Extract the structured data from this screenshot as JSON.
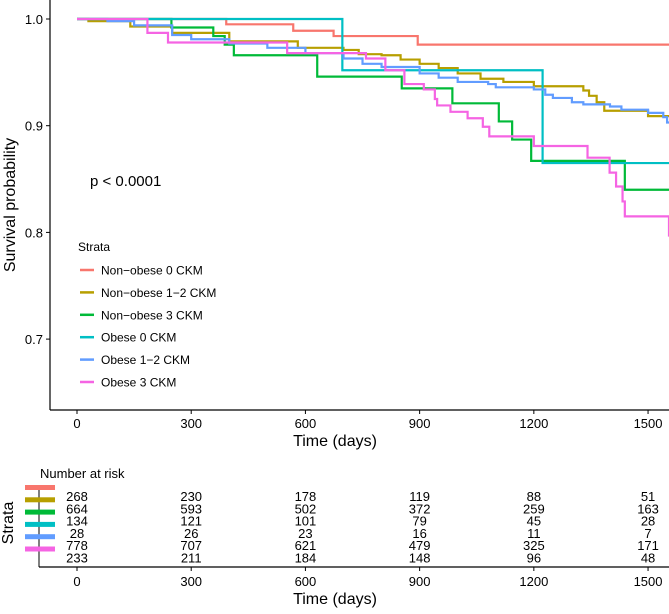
{
  "chart_data": {
    "type": "line",
    "subtype": "kaplan-meier",
    "xlabel": "Time (days)",
    "ylabel": "Survival probability",
    "xlim": [
      -70,
      1555
    ],
    "ylim": [
      0.633,
      1.018
    ],
    "xticks": [
      0,
      300,
      600,
      900,
      1200,
      1500
    ],
    "yticks": [
      0.7,
      0.8,
      0.9,
      1.0
    ],
    "ytick_labels": [
      "0.7",
      "0.8",
      "0.9",
      "1.0"
    ],
    "grid": false,
    "annotation": "p < 0.0001",
    "legend": {
      "title": "Strata",
      "placement": "center-left"
    },
    "series": [
      {
        "name": "Non−obese 0 CKM",
        "color": "#F8766D",
        "steps": [
          [
            0,
            1.0
          ],
          [
            392,
            0.995
          ],
          [
            568,
            0.989
          ],
          [
            674,
            0.984
          ],
          [
            895,
            0.976
          ],
          [
            1560,
            0.976
          ]
        ]
      },
      {
        "name": "Non−obese 1−2 CKM",
        "color": "#B79F00",
        "steps": [
          [
            0,
            1.0
          ],
          [
            30,
            0.998
          ],
          [
            140,
            0.993
          ],
          [
            250,
            0.987
          ],
          [
            400,
            0.979
          ],
          [
            580,
            0.973
          ],
          [
            700,
            0.971
          ],
          [
            740,
            0.967
          ],
          [
            800,
            0.966
          ],
          [
            850,
            0.962
          ],
          [
            900,
            0.958
          ],
          [
            950,
            0.954
          ],
          [
            1000,
            0.949
          ],
          [
            1060,
            0.944
          ],
          [
            1120,
            0.941
          ],
          [
            1200,
            0.937
          ],
          [
            1330,
            0.933
          ],
          [
            1345,
            0.928
          ],
          [
            1365,
            0.922
          ],
          [
            1385,
            0.914
          ],
          [
            1500,
            0.909
          ],
          [
            1560,
            0.908
          ]
        ]
      },
      {
        "name": "Non−obese 3 CKM",
        "color": "#00BA38",
        "steps": [
          [
            0,
            1.0
          ],
          [
            248,
            0.992
          ],
          [
            358,
            0.984
          ],
          [
            388,
            0.976
          ],
          [
            412,
            0.966
          ],
          [
            631,
            0.946
          ],
          [
            853,
            0.935
          ],
          [
            986,
            0.921
          ],
          [
            1108,
            0.904
          ],
          [
            1143,
            0.887
          ],
          [
            1193,
            0.867
          ],
          [
            1439,
            0.84
          ],
          [
            1560,
            0.84
          ]
        ]
      },
      {
        "name": "Obese 0 CKM",
        "color": "#00BFC4",
        "steps": [
          [
            0,
            1.0
          ],
          [
            697,
            0.952
          ],
          [
            1223,
            0.865
          ],
          [
            1560,
            0.865
          ]
        ]
      },
      {
        "name": "Obese 1−2 CKM",
        "color": "#619CFF",
        "steps": [
          [
            0,
            1.0
          ],
          [
            80,
            0.998
          ],
          [
            150,
            0.994
          ],
          [
            250,
            0.985
          ],
          [
            300,
            0.981
          ],
          [
            400,
            0.977
          ],
          [
            500,
            0.973
          ],
          [
            600,
            0.968
          ],
          [
            700,
            0.963
          ],
          [
            750,
            0.958
          ],
          [
            800,
            0.955
          ],
          [
            900,
            0.949
          ],
          [
            950,
            0.945
          ],
          [
            1000,
            0.941
          ],
          [
            1080,
            0.939
          ],
          [
            1100,
            0.936
          ],
          [
            1200,
            0.934
          ],
          [
            1230,
            0.929
          ],
          [
            1250,
            0.926
          ],
          [
            1300,
            0.922
          ],
          [
            1330,
            0.92
          ],
          [
            1400,
            0.918
          ],
          [
            1430,
            0.915
          ],
          [
            1500,
            0.912
          ],
          [
            1540,
            0.908
          ],
          [
            1550,
            0.903
          ],
          [
            1560,
            0.903
          ]
        ]
      },
      {
        "name": "Obese 3 CKM",
        "color": "#F564E3",
        "steps": [
          [
            0,
            1.0
          ],
          [
            185,
            0.987
          ],
          [
            239,
            0.978
          ],
          [
            552,
            0.968
          ],
          [
            759,
            0.963
          ],
          [
            810,
            0.952
          ],
          [
            860,
            0.939
          ],
          [
            911,
            0.934
          ],
          [
            940,
            0.925
          ],
          [
            946,
            0.919
          ],
          [
            981,
            0.913
          ],
          [
            1026,
            0.907
          ],
          [
            1066,
            0.899
          ],
          [
            1083,
            0.89
          ],
          [
            1200,
            0.881
          ],
          [
            1341,
            0.87
          ],
          [
            1399,
            0.856
          ],
          [
            1416,
            0.843
          ],
          [
            1433,
            0.829
          ],
          [
            1439,
            0.815
          ],
          [
            1560,
            0.796
          ]
        ]
      }
    ],
    "risk_table": {
      "title": "Number at risk",
      "ylabel": "Strata",
      "xlabel": "Time (days)",
      "times": [
        0,
        300,
        600,
        900,
        1200,
        1500
      ],
      "time_labels": [
        "0",
        "300",
        "600",
        "900",
        "1200",
        "1500"
      ],
      "rows": [
        [
          "268",
          "230",
          "178",
          "119",
          "88",
          "51"
        ],
        [
          "664",
          "593",
          "502",
          "372",
          "259",
          "163"
        ],
        [
          "134",
          "121",
          "101",
          "79",
          "45",
          "28"
        ],
        [
          "28",
          "26",
          "23",
          "16",
          "11",
          "7"
        ],
        [
          "778",
          "707",
          "621",
          "479",
          "325",
          "171"
        ],
        [
          "233",
          "211",
          "184",
          "148",
          "96",
          "48"
        ]
      ]
    }
  }
}
